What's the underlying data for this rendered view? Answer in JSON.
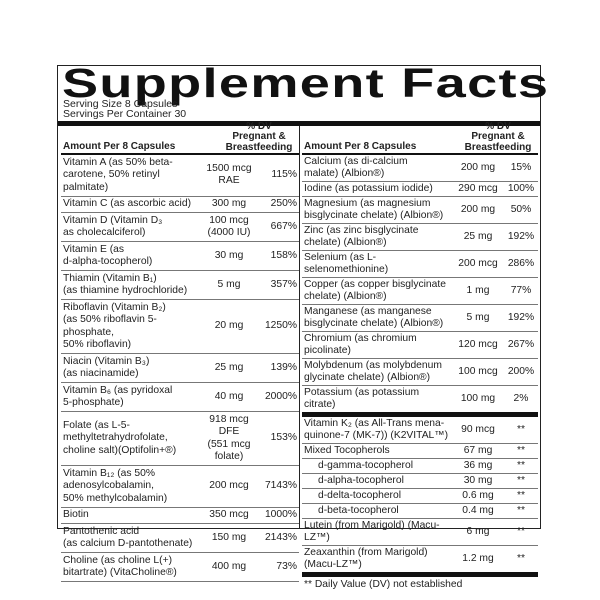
{
  "title": "Supplement Facts",
  "serving_size": "Serving Size 8 Capsules",
  "servings_per_container": "Servings Per Container 30",
  "header": {
    "amount": "Amount Per 8 Capsules",
    "dv": "% DV\nPregnant &\nBreastfeeding"
  },
  "left_rows": [
    {
      "name": "Vitamin A (as 50% beta-\ncarotene, 50% retinyl palmitate)",
      "amount": "1500 mcg\nRAE",
      "dv": "115%"
    },
    {
      "name": "Vitamin C (as ascorbic acid)",
      "amount": "300 mg",
      "dv": "250%"
    },
    {
      "name": "Vitamin D (Vitamin D₃\nas cholecalciferol)",
      "amount": "100 mcg\n(4000 IU)",
      "dv": "667%"
    },
    {
      "name": "Vitamin E (as\nd-alpha-tocopherol)",
      "amount": "30 mg",
      "dv": "158%"
    },
    {
      "name": "Thiamin (Vitamin B₁)\n(as thiamine hydrochloride)",
      "amount": "5 mg",
      "dv": "357%"
    },
    {
      "name": "Riboflavin (Vitamin B₂)\n(as 50% riboflavin 5-phosphate,\n50% riboflavin)",
      "amount": "20 mg",
      "dv": "1250%"
    },
    {
      "name": "Niacin (Vitamin B₃)\n(as niacinamide)",
      "amount": "25 mg",
      "dv": "139%"
    },
    {
      "name": "Vitamin B₆ (as pyridoxal\n5-phosphate)",
      "amount": "40 mg",
      "dv": "2000%"
    },
    {
      "name": "Folate (as L-5-\nmethyltetrahydrofolate,\ncholine salt)(Optifolin+®)",
      "amount": "918 mcg DFE\n(551 mcg folate)",
      "dv": "153%"
    },
    {
      "name": "Vitamin B₁₂ (as 50%\nadenosylcobalamin,\n50% methylcobalamin)",
      "amount": "200 mcg",
      "dv": "7143%"
    },
    {
      "name": "Biotin",
      "amount": "350 mcg",
      "dv": "1000%"
    },
    {
      "name": "Pantothenic acid\n(as calcium D-pantothenate)",
      "amount": "150 mg",
      "dv": "2143%"
    },
    {
      "name": "Choline (as choline L(+)\nbitartrate) (VitaCholine®)",
      "amount": "400 mg",
      "dv": "73%"
    }
  ],
  "right_rows": [
    {
      "name": "Calcium (as di-calcium\nmalate) (Albion®)",
      "amount": "200 mg",
      "dv": "15%"
    },
    {
      "name": "Iodine (as potassium iodide)",
      "amount": "290 mcg",
      "dv": "100%"
    },
    {
      "name": "Magnesium (as magnesium\nbisglycinate chelate) (Albion®)",
      "amount": "200 mg",
      "dv": "50%"
    },
    {
      "name": "Zinc (as zinc bisglycinate\nchelate) (Albion®)",
      "amount": "25 mg",
      "dv": "192%"
    },
    {
      "name": "Selenium (as L-selenomethionine)",
      "amount": "200 mcg",
      "dv": "286%"
    },
    {
      "name": "Copper (as copper bisglycinate\nchelate) (Albion®)",
      "amount": "1 mg",
      "dv": "77%"
    },
    {
      "name": "Manganese (as manganese\nbisglycinate chelate) (Albion®)",
      "amount": "5 mg",
      "dv": "192%"
    },
    {
      "name": "Chromium (as chromium picolinate)",
      "amount": "120 mcg",
      "dv": "267%"
    },
    {
      "name": "Molybdenum (as molybdenum\nglycinate chelate) (Albion®)",
      "amount": "100 mcg",
      "dv": "200%"
    },
    {
      "name": "Potassium (as potassium citrate)",
      "amount": "100 mg",
      "dv": "2%"
    }
  ],
  "other_rows": [
    {
      "name": "Vitamin K₂ (as All-Trans mena-\nquinone-7 (MK-7)) (K2VITAL™)",
      "amount": "90 mcg",
      "dv": "**"
    },
    {
      "name": "Mixed Tocopherols",
      "amount": "67 mg",
      "dv": "**"
    },
    {
      "name": "d-gamma-tocopherol",
      "amount": "36 mg",
      "dv": "**",
      "sub": true
    },
    {
      "name": "d-alpha-tocopherol",
      "amount": "30 mg",
      "dv": "**",
      "sub": true
    },
    {
      "name": "d-delta-tocopherol",
      "amount": "0.6 mg",
      "dv": "**",
      "sub": true
    },
    {
      "name": "d-beta-tocopherol",
      "amount": "0.4 mg",
      "dv": "**",
      "sub": true
    },
    {
      "name": "Lutein (from Marigold) (Macu-LZ™)",
      "amount": "6 mg",
      "dv": "**"
    },
    {
      "name": "Zeaxanthin (from Marigold)\n(Macu-LZ™)",
      "amount": "1.2 mg",
      "dv": "**"
    }
  ],
  "footnote": "** Daily Value (DV) not established"
}
